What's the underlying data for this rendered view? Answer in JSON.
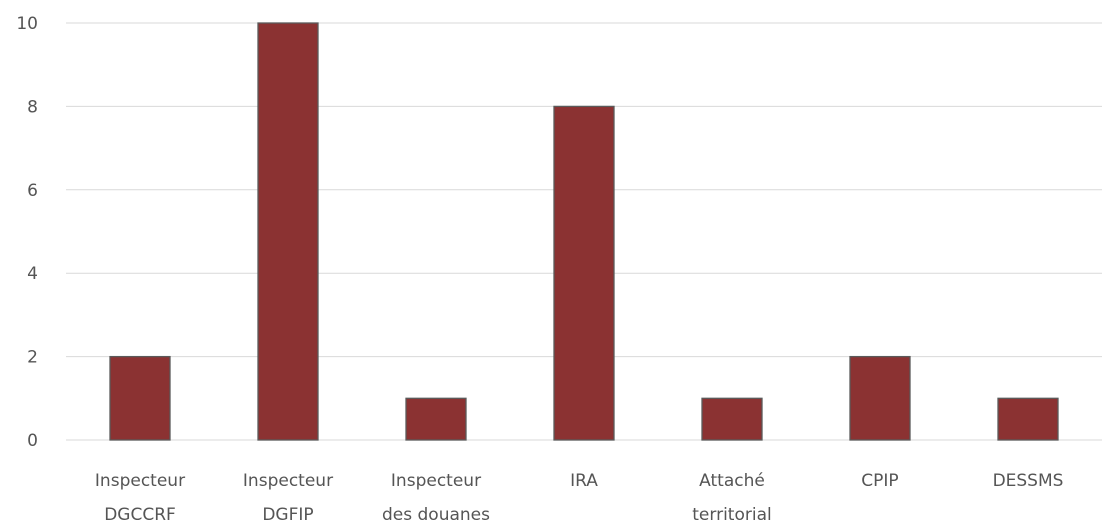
{
  "chart_data": {
    "type": "bar",
    "title": "",
    "xlabel": "",
    "ylabel": "",
    "categories": [
      [
        "Inspecteur",
        "DGCCRF"
      ],
      [
        "Inspecteur",
        "DGFIP"
      ],
      [
        "Inspecteur",
        "des douanes"
      ],
      [
        "IRA"
      ],
      [
        "Attaché",
        "territorial"
      ],
      [
        "CPIP"
      ],
      [
        "DESSMS"
      ]
    ],
    "values": [
      2,
      10,
      1,
      8,
      1,
      2,
      1
    ],
    "ylim": [
      0,
      10
    ],
    "yticks": [
      "0",
      "2",
      "4",
      "6",
      "8",
      "10"
    ],
    "grid": true,
    "legend": "none",
    "colors": {
      "bar": "#8b3232",
      "bar_border": "#5a5a5a",
      "grid": "#d9d9d9",
      "text": "#555555"
    }
  }
}
